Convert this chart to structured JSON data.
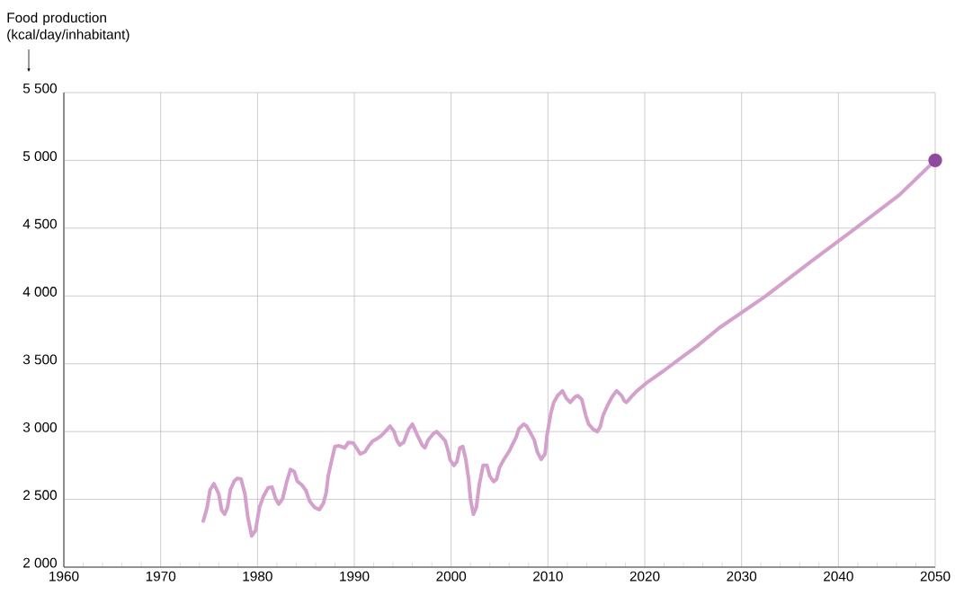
{
  "chart_data": {
    "type": "line",
    "ylabel": "Food production (kcal/day/inhabitant)",
    "xlim": [
      1960,
      2050
    ],
    "ylim": [
      2000,
      5500
    ],
    "xticks": [
      1960,
      1970,
      1980,
      1990,
      2000,
      2010,
      2020,
      2030,
      2040,
      2050
    ],
    "yticks": [
      {
        "value": 2000,
        "label": "2 000"
      },
      {
        "value": 2500,
        "label": "2 500"
      },
      {
        "value": 3000,
        "label": "3 000"
      },
      {
        "value": 3500,
        "label": "3 500"
      },
      {
        "value": 4000,
        "label": "4 000"
      },
      {
        "value": 4500,
        "label": "4 500"
      },
      {
        "value": 5000,
        "label": "5 000"
      },
      {
        "value": 5500,
        "label": "5 500"
      }
    ],
    "grid": true,
    "series": [
      {
        "color": "#d4a0cc",
        "x": [
          1974.4,
          1974.8,
          1975.1,
          1975.5,
          1976.0,
          1976.3,
          1976.6,
          1976.9,
          1977.2,
          1977.6,
          1977.9,
          1978.3,
          1978.7,
          1979.0,
          1979.4,
          1979.8,
          1980.2,
          1980.6,
          1981.1,
          1981.5,
          1981.9,
          1982.2,
          1982.6,
          1983.0,
          1983.4,
          1983.8,
          1984.1,
          1984.6,
          1985.0,
          1985.4,
          1985.9,
          1986.4,
          1986.8,
          1987.1,
          1987.3,
          1987.7,
          1988.0,
          1988.4,
          1989.0,
          1989.4,
          1989.9,
          1990.3,
          1990.6,
          1991.1,
          1991.5,
          1991.9,
          1992.4,
          1992.8,
          1993.2,
          1993.7,
          1994.1,
          1994.4,
          1994.7,
          1995.1,
          1995.6,
          1996.0,
          1996.5,
          1997.0,
          1997.3,
          1997.6,
          1998.1,
          1998.5,
          1998.9,
          1999.4,
          1999.7,
          1999.9,
          2000.3,
          2000.6,
          2000.9,
          2001.2,
          2001.5,
          2001.8,
          2002.0,
          2002.3,
          2002.6,
          2002.9,
          2003.3,
          2003.7,
          2004.0,
          2004.4,
          2004.7,
          2005.0,
          2005.5,
          2006.0,
          2006.3,
          2006.7,
          2007.0,
          2007.5,
          2007.8,
          2008.2,
          2008.6,
          2008.9,
          2009.3,
          2009.7,
          2009.9,
          2010.3,
          2010.6,
          2011.0,
          2011.5,
          2011.9,
          2012.3,
          2012.8,
          2013.1,
          2013.5,
          2013.9,
          2014.2,
          2014.7,
          2015.1,
          2015.4,
          2015.7,
          2016.2,
          2016.7,
          2017.1,
          2017.6,
          2017.9,
          2018.1,
          2018.6,
          2019.2,
          2020.3,
          2021.9,
          2023.5,
          2025.4,
          2027.7,
          2032.4,
          2037.0,
          2041.6,
          2046.3,
          2050
        ],
        "values": [
          2340,
          2440,
          2570,
          2615,
          2540,
          2420,
          2390,
          2440,
          2570,
          2635,
          2655,
          2650,
          2540,
          2370,
          2230,
          2270,
          2440,
          2520,
          2585,
          2590,
          2500,
          2465,
          2505,
          2625,
          2720,
          2705,
          2635,
          2605,
          2565,
          2485,
          2440,
          2425,
          2470,
          2550,
          2670,
          2800,
          2890,
          2895,
          2880,
          2920,
          2915,
          2870,
          2835,
          2850,
          2895,
          2930,
          2950,
          2970,
          3000,
          3040,
          3000,
          2935,
          2900,
          2920,
          3015,
          3055,
          2975,
          2900,
          2880,
          2935,
          2980,
          3000,
          2970,
          2930,
          2855,
          2790,
          2750,
          2780,
          2880,
          2890,
          2800,
          2655,
          2500,
          2390,
          2440,
          2605,
          2750,
          2750,
          2670,
          2630,
          2650,
          2735,
          2800,
          2855,
          2900,
          2955,
          3020,
          3055,
          3040,
          2990,
          2935,
          2850,
          2795,
          2835,
          2970,
          3135,
          3215,
          3265,
          3300,
          3245,
          3215,
          3255,
          3265,
          3235,
          3120,
          3055,
          3015,
          3000,
          3035,
          3120,
          3200,
          3265,
          3300,
          3265,
          3225,
          3215,
          3255,
          3300,
          3365,
          3445,
          3530,
          3630,
          3765,
          3995,
          4245,
          4490,
          4745,
          5000
        ]
      },
      {
        "type": "scatter",
        "color": "#8e4b9e",
        "marker": "circle",
        "x": [
          2050
        ],
        "values": [
          5000
        ]
      }
    ]
  }
}
